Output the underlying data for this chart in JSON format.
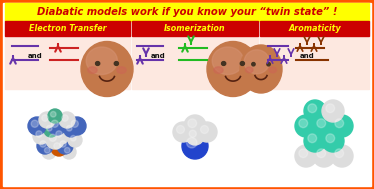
{
  "title": "Diabatic models work if you know your “twin state” !",
  "title_color": "#cc0000",
  "title_bg": "#ffff00",
  "outer_border_color": "#ff5500",
  "sections": [
    {
      "label": "Electron Transfer"
    },
    {
      "label": "Isomerization"
    },
    {
      "label": "Aromaticity"
    }
  ],
  "label_bg": "#cc0000",
  "label_color": "#ffff00",
  "panel_bg": "#fde8e0",
  "white_bg": "#ffffff",
  "line_purple": "#6633aa",
  "line_red": "#cc2222",
  "line_green": "#22bb22",
  "line_brown": "#883300",
  "arrow_red": "#cc2222",
  "arrow_purple": "#6633aa",
  "arrow_green": "#22bb22",
  "arrow_brown": "#883300",
  "and_color": "#111111",
  "face_skin": "#c87850",
  "face_cheek": "#d4956a"
}
